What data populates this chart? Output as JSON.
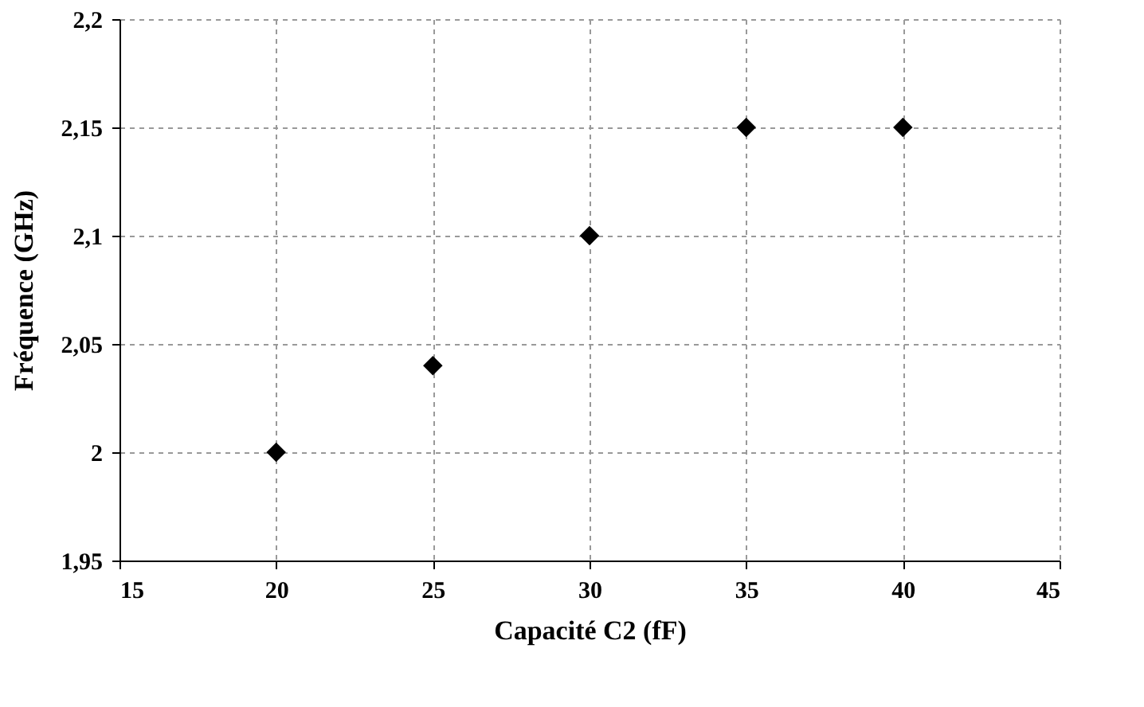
{
  "chart_data": {
    "type": "scatter",
    "xlabel": "Capacité C2 (fF)",
    "ylabel": "Fréquence (GHz)",
    "x": [
      20,
      25,
      30,
      35,
      40
    ],
    "series": [
      {
        "color": "#000000",
        "values": [
          2.0,
          2.04,
          2.1,
          2.15,
          2.15
        ]
      }
    ],
    "xlim": [
      15,
      45
    ],
    "xticks": [
      15,
      20,
      25,
      30,
      35,
      40,
      45
    ],
    "ylim": [
      1.95,
      2.2
    ],
    "yticks": [
      {
        "value": 1.95,
        "label": "1,95"
      },
      2,
      {
        "value": 2.05,
        "label": "2,05"
      },
      {
        "value": 2.1,
        "label": "2,1"
      },
      {
        "value": 2.15,
        "label": "2,15"
      },
      {
        "value": 2.2,
        "label": "2,2"
      }
    ],
    "grid": true,
    "marker": "diamond",
    "legend": false
  }
}
